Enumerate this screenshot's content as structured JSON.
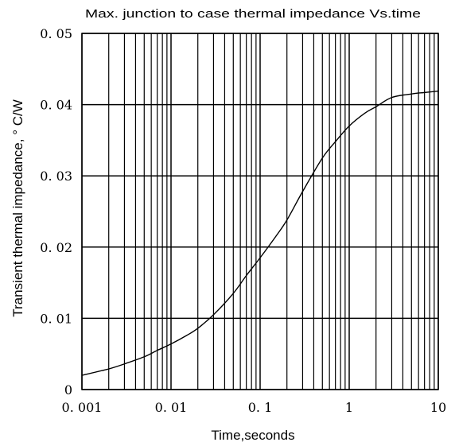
{
  "chart_data": {
    "type": "line",
    "title": "Max. junction to case thermal impedance Vs.time",
    "xlabel": "Time,seconds",
    "ylabel": "Transient thermal impedance, ° C/W",
    "x_scale": "log",
    "xlim": [
      0.001,
      10
    ],
    "ylim": [
      0,
      0.05
    ],
    "grid": true,
    "x_ticks": [
      0.001,
      0.01,
      0.1,
      1,
      10
    ],
    "x_tick_labels": [
      "0. 001",
      "0. 01",
      "0. 1",
      "1",
      "10"
    ],
    "y_ticks": [
      0,
      0.01,
      0.02,
      0.03,
      0.04,
      0.05
    ],
    "y_tick_labels": [
      "0",
      "0. 01",
      "0. 02",
      "0. 03",
      "0. 04",
      "0. 05"
    ],
    "series": [
      {
        "x": [
          0.001,
          0.002,
          0.003,
          0.005,
          0.007,
          0.01,
          0.015,
          0.02,
          0.03,
          0.05,
          0.07,
          0.1,
          0.15,
          0.2,
          0.3,
          0.5,
          0.7,
          1,
          1.5,
          2,
          3,
          5,
          7,
          10
        ],
        "y": [
          0.002,
          0.0029,
          0.0036,
          0.0046,
          0.0055,
          0.0064,
          0.0076,
          0.0086,
          0.0105,
          0.0135,
          0.016,
          0.0185,
          0.0215,
          0.0238,
          0.0278,
          0.0325,
          0.0348,
          0.037,
          0.0388,
          0.0397,
          0.041,
          0.0415,
          0.0417,
          0.0419
        ]
      }
    ]
  }
}
